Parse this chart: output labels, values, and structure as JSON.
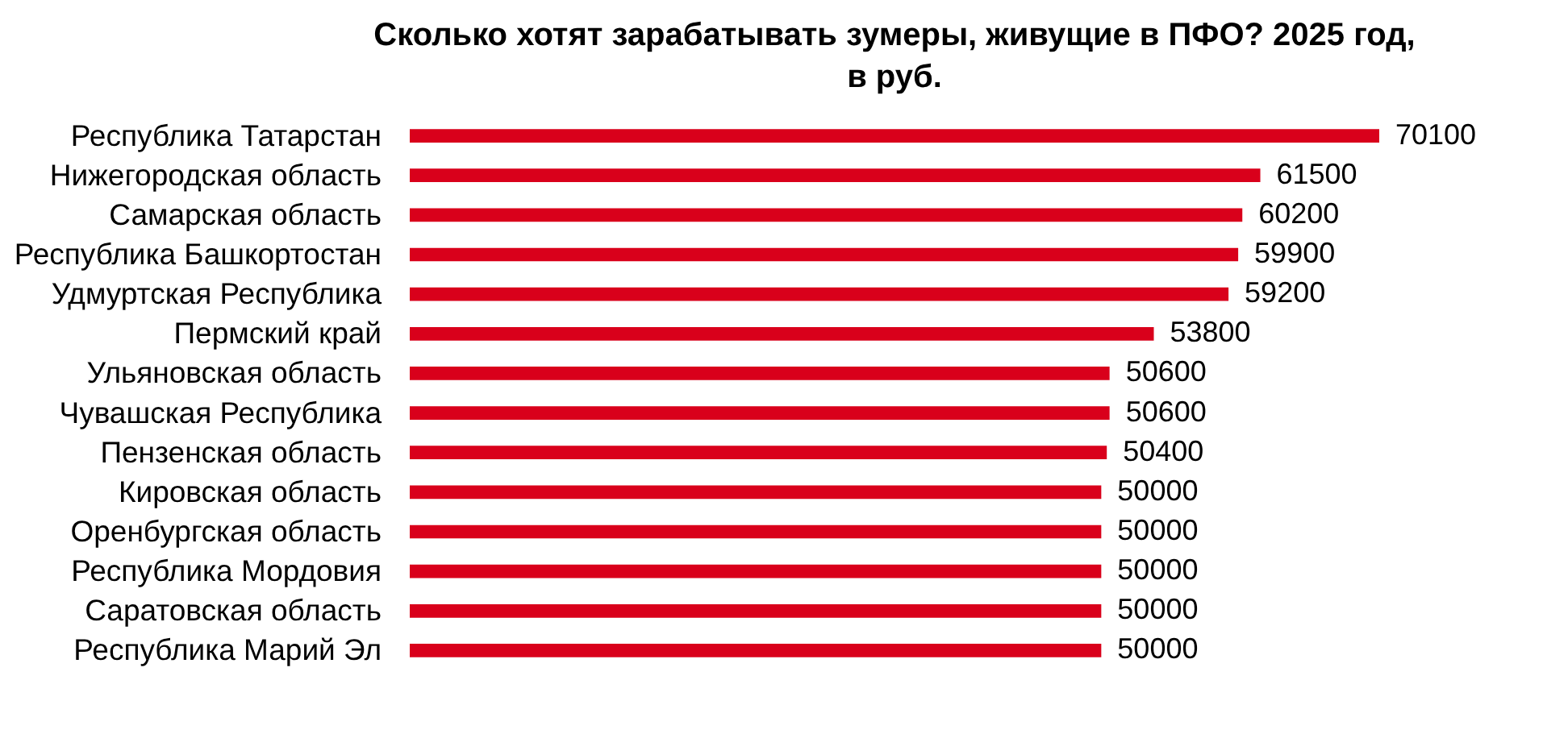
{
  "chart_data": {
    "type": "bar",
    "orientation": "horizontal",
    "title": "Сколько хотят зарабатывать зумеры, живущие в ПФО? 2025 год,\nв руб.",
    "categories": [
      "Республика Татарстан",
      "Нижегородская область",
      "Самарская область",
      "Республика Башкортостан",
      "Удмуртская Республика",
      "Пермский край",
      "Ульяновская область",
      "Чувашская Республика",
      "Пензенская область",
      "Кировская область",
      "Оренбургская область",
      "Республика Мордовия",
      "Саратовская область",
      "Республика Марий Эл"
    ],
    "values": [
      70100,
      61500,
      60200,
      59900,
      59200,
      53800,
      50600,
      50600,
      50400,
      50000,
      50000,
      50000,
      50000,
      50000
    ],
    "color": "#d9001b",
    "data_labels": true,
    "grid": false,
    "tick_labels": "y"
  }
}
